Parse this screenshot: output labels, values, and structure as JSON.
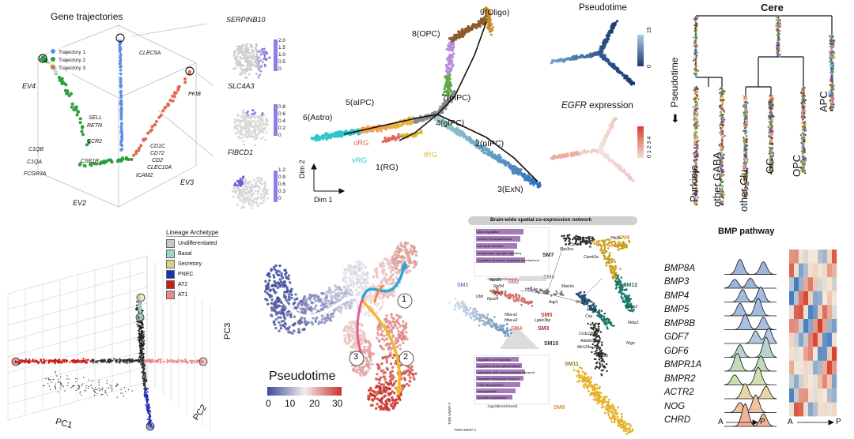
{
  "colors": {
    "traj1": "#5b8fe6",
    "traj2": "#2e9e3b",
    "traj3": "#e06a55",
    "purple": "#6a4cd8",
    "astro": "#2cc6c7",
    "exn": "#2f6fbf",
    "oligo": "#8b5a2b",
    "opc": "#b68be0",
    "orange": "#e59a2f",
    "pseudo_low": "#3e4a9a",
    "pseudo_high": "#c8332a"
  },
  "gene_traj": {
    "title": "Gene trajectories",
    "legend": [
      "Trajectory 1",
      "Trajectory 2",
      "Trajectory 3"
    ],
    "axes": [
      "EV4",
      "EV2",
      "EV3"
    ],
    "genes": [
      "CLEC5A",
      "PKIB",
      "SELL",
      "RETN",
      "CCR2",
      "CD1C",
      "CD72",
      "CD2",
      "CLEC10A",
      "ICAM2",
      "CSF1R",
      "C1QB",
      "C1QA",
      "FCGR3A"
    ]
  },
  "feature_maps": [
    {
      "gene": "SERPINB10",
      "ticks": [
        "2.0",
        "1.5",
        "1.0",
        "0.5",
        "0"
      ]
    },
    {
      "gene": "SLC4A3",
      "ticks": [
        "0.8",
        "0.6",
        "0.4",
        "0.2",
        "0"
      ]
    },
    {
      "gene": "FIBCD1",
      "ticks": [
        "1.2",
        "0.9",
        "0.6",
        "0.3",
        "0"
      ]
    }
  ],
  "lineage": {
    "nodes": [
      "9(Oligo)",
      "8(OPC)",
      "7(oIPC)",
      "5(aIPC)",
      "6(Astro)",
      "4(gIPC)",
      "2(nIPC)",
      "1(RG)",
      "3(ExN)"
    ],
    "rg_labels": [
      "oRG",
      "vRG",
      "tRG"
    ],
    "axes": [
      "Dim 2",
      "Dim 1"
    ]
  },
  "pseudotime_panel": {
    "title": "Pseudotime",
    "ticks": [
      "15",
      "0"
    ]
  },
  "egfr_panel": {
    "title_gene": "EGFR",
    "title_rest": " expression",
    "ticks": [
      "0 1 2 3 4"
    ]
  },
  "cere": {
    "title": "Cere",
    "axis_label": "Pseudotime",
    "arrow": "⬇",
    "leaves": [
      "Purkinje",
      "other GABA",
      "other Glu",
      "GC",
      "OPC",
      "APC"
    ]
  },
  "archetype": {
    "legend_title": "Lineage Archetype",
    "items": [
      {
        "label": "Undifferentiated",
        "color": "#c7c7c7"
      },
      {
        "label": "Basal",
        "color": "#9fd6c9"
      },
      {
        "label": "Secretory",
        "color": "#d8cf8c"
      },
      {
        "label": "PNEC",
        "color": "#1f2fb6"
      },
      {
        "label": "AT2",
        "color": "#c81d1d"
      },
      {
        "label": "AT1",
        "color": "#e68a8a"
      }
    ],
    "axes": [
      "PC3",
      "PC2",
      "PC1"
    ]
  },
  "umap": {
    "legend_title": "Pseudotime",
    "ticks": [
      "0",
      "10",
      "20",
      "30"
    ],
    "branches": [
      "1",
      "2",
      "3"
    ]
  },
  "network": {
    "title": "Brain-wide spatial co-expression network",
    "modules": [
      "SM1",
      "SM2",
      "SM3",
      "SM4",
      "SM5",
      "SM6",
      "SM7",
      "SM8",
      "SM9",
      "SM10",
      "SM11",
      "SM12"
    ],
    "genes": [
      "Tmem158",
      "Ptk2b",
      "Cpne6",
      "Ppp3ca",
      "Marcks",
      "Camk2a",
      "Rps21",
      "Rpl34",
      "Rps28",
      "Ubb",
      "Rps24",
      "Hbb-bs",
      "Hba-a1",
      "Hba-a2",
      "Lgals3bp",
      "Aqp1",
      "Gng3",
      "Mobp",
      "Cnp",
      "Ccdc136",
      "Adarb1",
      "Mir124a-1hg",
      "Nrgn",
      "Nrep",
      "Fkbp1",
      "Kcnh2"
    ],
    "go_terms_top": [
      "axon regulation",
      "neuron-Ht-depolarization",
      "cell cycle transition",
      "postsynaptic synaptic signaling",
      "regulation of neuron projection development"
    ],
    "go_terms_bottom": [
      "regulation cell migration",
      "regulation of cell differentiation",
      "carboxylic acid transmembrane transport",
      "regulated aminoacid transport",
      "CNS development",
      "neurogenesis",
      "synaptic organization"
    ],
    "go_xlabel": "-log10(Enrichment)",
    "axes": [
      "TOM UMAP-2",
      "TOM UMAP-1"
    ]
  },
  "bmp": {
    "title": "BMP pathway",
    "genes": [
      "BMP8A",
      "BMP3",
      "BMP4",
      "BMP5",
      "BMP8B",
      "GDF7",
      "GDF6",
      "BMPR1A",
      "BMPR2",
      "ACTR2",
      "NOG",
      "CHRD"
    ],
    "axis_a": "A",
    "axis_p": "P"
  }
}
